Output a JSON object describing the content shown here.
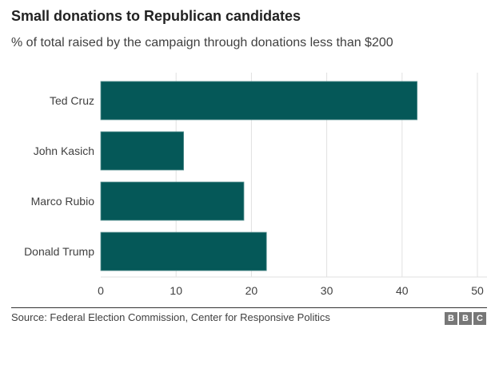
{
  "chart_data": {
    "type": "bar",
    "orientation": "horizontal",
    "title": "Small donations to Republican candidates",
    "subtitle": "% of total raised by the campaign through donations less than $200",
    "categories": [
      "Ted Cruz",
      "John Kasich",
      "Marco Rubio",
      "Donald Trump"
    ],
    "values": [
      42,
      11,
      19,
      22
    ],
    "xlim": [
      0,
      50
    ],
    "xticks": [
      "0",
      "10",
      "20",
      "30",
      "40",
      "50"
    ],
    "grid": true,
    "bar_color": "#055858"
  },
  "footer": {
    "source": "Source: Federal Election Commission, Center for Responsive Politics",
    "logo": [
      "B",
      "B",
      "C"
    ]
  }
}
